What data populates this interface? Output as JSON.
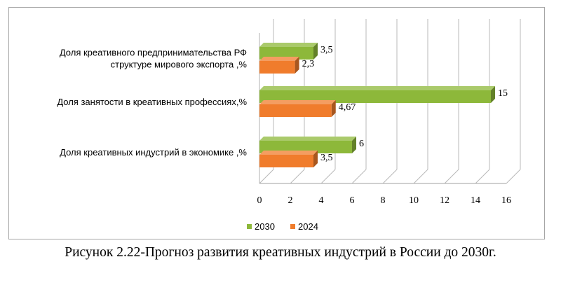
{
  "chart_data": {
    "type": "bar",
    "orientation": "horizontal",
    "style": "3d",
    "categories": [
      [
        "Доля креативного предпринимательства  РФ",
        "структуре мирового экспорта ,%"
      ],
      [
        "Доля занятости в креативных профессиях,%"
      ],
      [
        "Доля креативных индустрий в экономике ,%"
      ]
    ],
    "series": [
      {
        "name": "2030",
        "color": "#8db83a",
        "values": [
          3.5,
          15,
          6
        ],
        "labels": [
          "3,5",
          "15",
          "6"
        ]
      },
      {
        "name": "2024",
        "color": "#f07c2c",
        "values": [
          2.3,
          4.67,
          3.5
        ],
        "labels": [
          "2,3",
          "4,67",
          "3,5"
        ]
      }
    ],
    "xlim": [
      0,
      16
    ],
    "ticks": [
      "0",
      "2",
      "4",
      "6",
      "8",
      "10",
      "12",
      "14",
      "16"
    ],
    "grid": true,
    "legend_position": "bottom"
  },
  "caption": "Рисунок 2.22-Прогноз развития креативных индустрий в России до 2030г."
}
